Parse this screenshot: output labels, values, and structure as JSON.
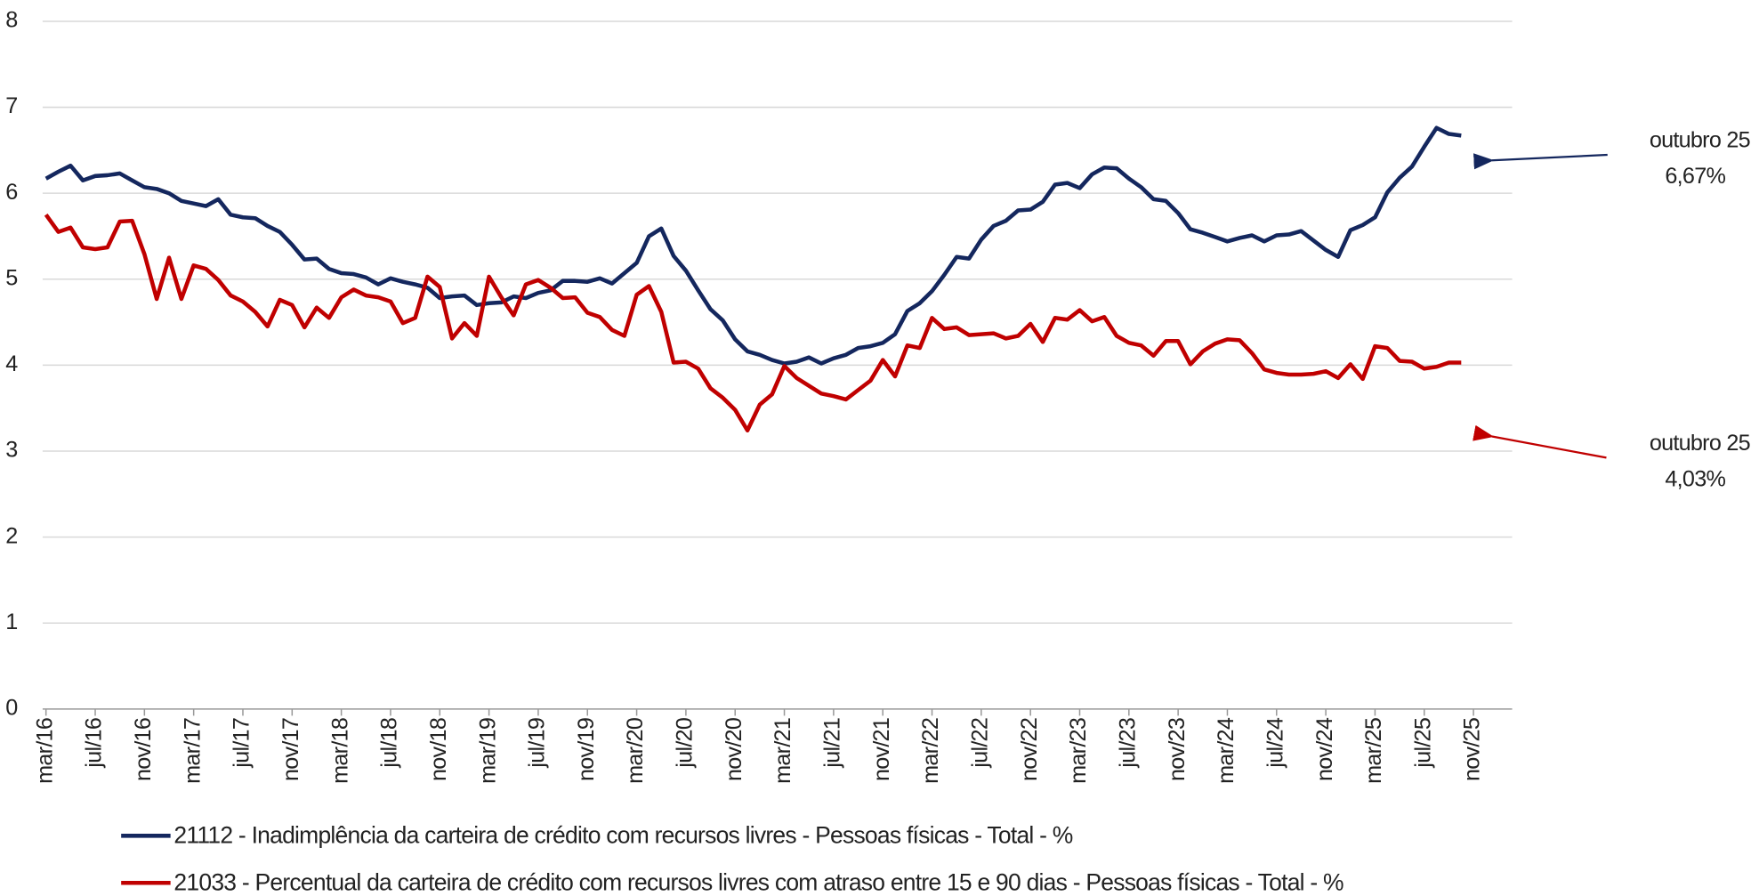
{
  "chart_data": {
    "type": "line",
    "categories": [
      "mar/16",
      null,
      null,
      null,
      "jul/16",
      null,
      null,
      null,
      "nov/16",
      null,
      null,
      null,
      "mar/17",
      null,
      null,
      null,
      "jul/17",
      null,
      null,
      null,
      "nov/17",
      null,
      null,
      null,
      "mar/18",
      null,
      null,
      null,
      "jul/18",
      null,
      null,
      null,
      "nov/18",
      null,
      null,
      null,
      "mar/19",
      null,
      null,
      null,
      "jul/19",
      null,
      null,
      null,
      "nov/19",
      null,
      null,
      null,
      "mar/20",
      null,
      null,
      null,
      "jul/20",
      null,
      null,
      null,
      "nov/20",
      null,
      null,
      null,
      "mar/21",
      null,
      null,
      null,
      "jul/21",
      null,
      null,
      null,
      "nov/21",
      null,
      null,
      null,
      "mar/22",
      null,
      null,
      null,
      "jul/22",
      null,
      null,
      null,
      "nov/22",
      null,
      null,
      null,
      "mar/23",
      null,
      null,
      null,
      "jul/23",
      null,
      null,
      null,
      "nov/23",
      null,
      null,
      null,
      "mar/24",
      null,
      null,
      null,
      "jul/24",
      null,
      null,
      null,
      "nov/24",
      null,
      null,
      null,
      "mar/25",
      null,
      null,
      null,
      "jul/25",
      null,
      null,
      null,
      "nov/25"
    ],
    "series": [
      {
        "name": "21112 - Inadimplência da carteira de crédito com recursos livres - Pessoas físicas - Total - %",
        "color": "#14275e",
        "values": [
          6.17,
          6.25,
          6.32,
          6.15,
          6.2,
          6.21,
          6.23,
          6.15,
          6.07,
          6.05,
          6.0,
          5.91,
          5.88,
          5.85,
          5.93,
          5.75,
          5.72,
          5.71,
          5.62,
          5.55,
          5.4,
          5.23,
          5.24,
          5.12,
          5.07,
          5.06,
          5.02,
          4.94,
          5.01,
          4.97,
          4.94,
          4.9,
          4.78,
          4.8,
          4.81,
          4.7,
          4.72,
          4.73,
          4.8,
          4.78,
          4.84,
          4.87,
          4.98,
          4.98,
          4.97,
          5.01,
          4.95,
          5.07,
          5.19,
          5.5,
          5.59,
          5.27,
          5.1,
          4.87,
          4.65,
          4.52,
          4.3,
          4.16,
          4.12,
          4.06,
          4.02,
          4.04,
          4.09,
          4.02,
          4.08,
          4.12,
          4.2,
          4.22,
          4.26,
          4.36,
          4.63,
          4.72,
          4.86,
          5.05,
          5.26,
          5.24,
          5.46,
          5.62,
          5.68,
          5.8,
          5.81,
          5.9,
          6.1,
          6.12,
          6.06,
          6.22,
          6.3,
          6.29,
          6.17,
          6.07,
          5.93,
          5.91,
          5.77,
          5.58,
          5.54,
          5.49,
          5.44,
          5.48,
          5.51,
          5.44,
          5.51,
          5.52,
          5.56,
          5.45,
          5.34,
          5.26,
          5.57,
          5.63,
          5.72,
          6.01,
          6.18,
          6.31,
          6.54,
          6.76,
          6.69,
          6.67,
          null
        ]
      },
      {
        "name": "21033 - Percentual da carteira de crédito com recursos livres com atraso entre 15 e 90 dias - Pessoas físicas - Total - %",
        "color": "#c00000",
        "values": [
          5.75,
          5.55,
          5.6,
          5.37,
          5.35,
          5.37,
          5.67,
          5.68,
          5.29,
          4.77,
          5.25,
          4.77,
          5.16,
          5.12,
          4.99,
          4.81,
          4.74,
          4.62,
          4.45,
          4.76,
          4.7,
          4.44,
          4.67,
          4.55,
          4.79,
          4.88,
          4.81,
          4.79,
          4.74,
          4.49,
          4.55,
          5.03,
          4.91,
          4.31,
          4.49,
          4.34,
          5.03,
          4.79,
          4.58,
          4.94,
          4.99,
          4.9,
          4.78,
          4.79,
          4.61,
          4.56,
          4.41,
          4.34,
          4.82,
          4.92,
          4.62,
          4.03,
          4.04,
          3.96,
          3.73,
          3.62,
          3.48,
          3.24,
          3.54,
          3.66,
          3.99,
          3.85,
          3.76,
          3.67,
          3.64,
          3.6,
          3.71,
          3.82,
          4.06,
          3.87,
          4.23,
          4.2,
          4.55,
          4.42,
          4.44,
          4.35,
          4.36,
          4.37,
          4.31,
          4.34,
          4.48,
          4.27,
          4.55,
          4.53,
          4.64,
          4.51,
          4.56,
          4.34,
          4.26,
          4.23,
          4.11,
          4.28,
          4.28,
          4.01,
          4.16,
          4.25,
          4.3,
          4.29,
          4.14,
          3.95,
          3.91,
          3.89,
          3.89,
          3.9,
          3.93,
          3.85,
          4.01,
          3.84,
          4.22,
          4.2,
          4.05,
          4.04,
          3.96,
          3.98,
          4.03,
          4.03,
          null
        ]
      }
    ],
    "ylim": [
      0,
      8
    ],
    "yticks": [
      0,
      1,
      2,
      3,
      4,
      5,
      6,
      7,
      8
    ],
    "grid": true,
    "annotations": [
      {
        "label": "outubro 25",
        "value_label": "6,67%",
        "value": 6.67
      },
      {
        "label": "outubro 25",
        "value_label": "4,03%",
        "value": 4.03
      }
    ]
  }
}
